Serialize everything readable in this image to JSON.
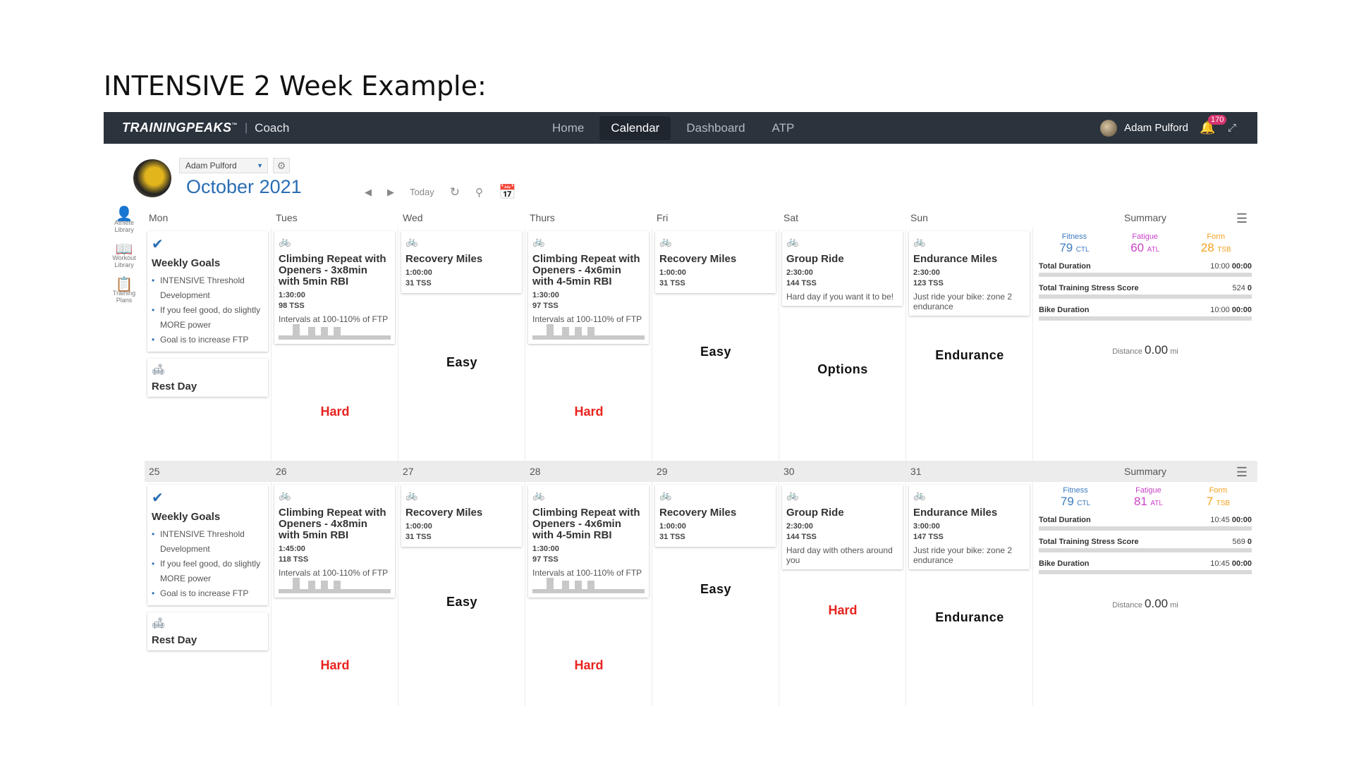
{
  "slide_title": "INTENSIVE 2 Week Example:",
  "nav": {
    "logo": "TRAININGPEAKS",
    "logo_mark": "™",
    "coach": "Coach",
    "links": [
      "Home",
      "Calendar",
      "Dashboard",
      "ATP"
    ],
    "active": "Calendar",
    "user": "Adam Pulford",
    "notifications": "170"
  },
  "header": {
    "athlete": "Adam Pulford",
    "month": "October",
    "year": "2021",
    "today": "Today"
  },
  "rail": [
    {
      "label1": "Athlete",
      "label2": "Library"
    },
    {
      "label1": "Workout",
      "label2": "Library"
    },
    {
      "label1": "Training",
      "label2": "Plans"
    }
  ],
  "goals": {
    "title": "Weekly Goals",
    "items": [
      "INTENSIVE Threshold Development",
      "If you feel good, do slightly MORE power",
      "Goal is to increase FTP"
    ]
  },
  "rest": "Rest Day",
  "weeks": [
    {
      "heads": [
        "Mon",
        "Tues",
        "Wed",
        "Thurs",
        "Fri",
        "Sat",
        "Sun"
      ],
      "summary_label": "Summary",
      "workouts": [
        {
          "title": "Climbing Repeat with Openers - 3x8min with 5min RBI",
          "duration": "1:30:00",
          "tss": "98 TSS",
          "desc": "Intervals at 100-110% of FTP"
        },
        {
          "title": "Recovery Miles",
          "duration": "1:00:00",
          "tss": "31 TSS",
          "desc": ""
        },
        {
          "title": "Climbing Repeat with Openers - 4x6min with 4-5min RBI",
          "duration": "1:30:00",
          "tss": "97 TSS",
          "desc": "Intervals at 100-110% of FTP"
        },
        {
          "title": "Recovery Miles",
          "duration": "1:00:00",
          "tss": "31 TSS",
          "desc": ""
        },
        {
          "title": "Group Ride",
          "duration": "2:30:00",
          "tss": "144 TSS",
          "desc": "Hard day if you want it to be!"
        },
        {
          "title": "Endurance Miles",
          "duration": "2:30:00",
          "tss": "123 TSS",
          "desc": "Just ride your bike: zone 2 endurance"
        }
      ],
      "annotations": [
        "Hard",
        "Easy",
        "Hard",
        "Easy",
        "Options",
        "Endurance"
      ],
      "summary": {
        "fitness_label": "Fitness",
        "fitness": "79",
        "fitness_unit": "CTL",
        "fatigue_label": "Fatigue",
        "fatigue": "60",
        "fatigue_unit": "ATL",
        "form_label": "Form",
        "form": "28",
        "form_unit": "TSB",
        "total_duration_label": "Total Duration",
        "total_duration_a": "10:00",
        "total_duration_b": "00:00",
        "tss_label": "Total Training Stress Score",
        "tss_a": "524",
        "tss_b": "0",
        "bike_label": "Bike Duration",
        "bike_a": "10:00",
        "bike_b": "00:00",
        "distance_label": "Distance",
        "distance": "0.00",
        "distance_unit": "mi"
      }
    },
    {
      "heads": [
        "25",
        "26",
        "27",
        "28",
        "29",
        "30",
        "31"
      ],
      "summary_label": "Summary",
      "workouts": [
        {
          "title": "Climbing Repeat with Openers - 4x8min with 5min RBI",
          "duration": "1:45:00",
          "tss": "118 TSS",
          "desc": "Intervals at 100-110% of FTP"
        },
        {
          "title": "Recovery Miles",
          "duration": "1:00:00",
          "tss": "31 TSS",
          "desc": ""
        },
        {
          "title": "Climbing Repeat with Openers - 4x6min with 4-5min RBI",
          "duration": "1:30:00",
          "tss": "97 TSS",
          "desc": "Intervals at 100-110% of FTP"
        },
        {
          "title": "Recovery Miles",
          "duration": "1:00:00",
          "tss": "31 TSS",
          "desc": ""
        },
        {
          "title": "Group Ride",
          "duration": "2:30:00",
          "tss": "144 TSS",
          "desc": "Hard day with others around you"
        },
        {
          "title": "Endurance Miles",
          "duration": "3:00:00",
          "tss": "147 TSS",
          "desc": "Just ride your bike: zone 2 endurance"
        }
      ],
      "annotations": [
        "Hard",
        "Easy",
        "Hard",
        "Easy",
        "Hard",
        "Endurance"
      ],
      "summary": {
        "fitness_label": "Fitness",
        "fitness": "79",
        "fitness_unit": "CTL",
        "fatigue_label": "Fatigue",
        "fatigue": "81",
        "fatigue_unit": "ATL",
        "form_label": "Form",
        "form": "7",
        "form_unit": "TSB",
        "total_duration_label": "Total Duration",
        "total_duration_a": "10:45",
        "total_duration_b": "00:00",
        "tss_label": "Total Training Stress Score",
        "tss_a": "569",
        "tss_b": "0",
        "bike_label": "Bike Duration",
        "bike_a": "10:45",
        "bike_b": "00:00",
        "distance_label": "Distance",
        "distance": "0.00",
        "distance_unit": "mi"
      }
    }
  ],
  "colors": {
    "accent": "#2a6db3",
    "bike": "#7c34b5",
    "hard": "#e8231f",
    "navbar": "#2b333d"
  },
  "icons": {
    "bike": "bike-icon",
    "check": "check-icon",
    "rest": "couch-icon"
  }
}
